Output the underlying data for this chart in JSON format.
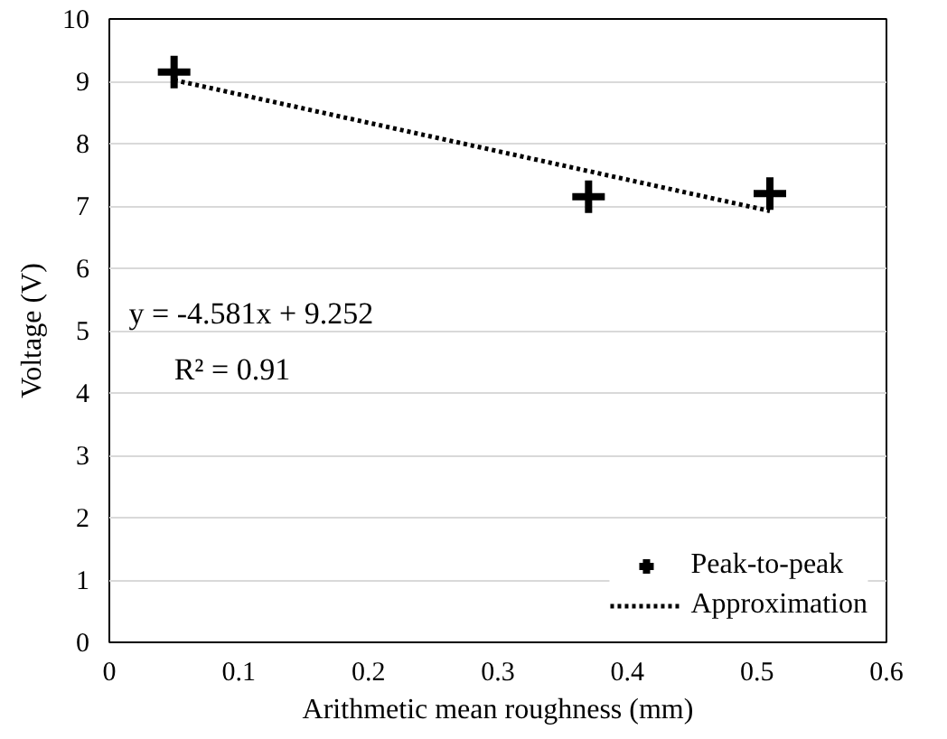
{
  "chart_data": {
    "type": "scatter",
    "xlabel": "Arithmetic mean roughness (mm)",
    "ylabel": "Voltage (V)",
    "xlim": [
      0,
      0.6
    ],
    "xticks": [
      0,
      0.1,
      0.2,
      0.3,
      0.4,
      0.5,
      0.6
    ],
    "ylim": [
      0,
      10
    ],
    "yticks": [
      0,
      1,
      2,
      3,
      4,
      5,
      6,
      7,
      8,
      9,
      10
    ],
    "grid": "y",
    "legend": "bottom right",
    "annotations": [
      "y = -4.581x + 9.252",
      "R² = 0.91"
    ],
    "series": [
      {
        "name": "Peak-to-peak",
        "marker": "cross",
        "color": "#000000",
        "x": [
          0.05,
          0.37,
          0.51
        ],
        "values": [
          9.15,
          7.15,
          7.2
        ]
      },
      {
        "name": "Approximation",
        "type": "line",
        "line_style": "dotted",
        "color": "#000000",
        "x": [
          0.05,
          0.51
        ],
        "values": [
          9.02,
          6.92
        ]
      }
    ]
  }
}
